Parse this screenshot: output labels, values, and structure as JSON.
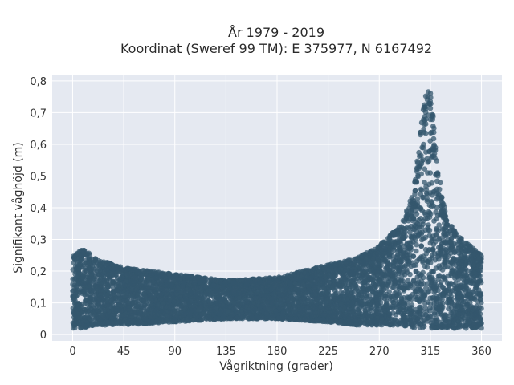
{
  "chart_data": {
    "type": "scatter",
    "title_line1": "År 1979 - 2019",
    "title_line2": "Koordinat (Sweref 99 TM): E 375977, N 6167492",
    "xlabel": "Vågriktning (grader)",
    "ylabel": "Signifikant våghöjd (m)",
    "xlim": [
      -18,
      378
    ],
    "ylim": [
      -0.02,
      0.82
    ],
    "xticks": [
      0,
      45,
      90,
      135,
      180,
      225,
      270,
      315,
      360
    ],
    "xtick_labels": [
      "0",
      "45",
      "90",
      "135",
      "180",
      "225",
      "270",
      "315",
      "360"
    ],
    "yticks": [
      0,
      0.1,
      0.2,
      0.3,
      0.4,
      0.5,
      0.6,
      0.7,
      0.8
    ],
    "ytick_labels": [
      "0",
      "0,1",
      "0,2",
      "0,3",
      "0,4",
      "0,5",
      "0,6",
      "0,7",
      "0,8"
    ],
    "grid": true,
    "marker_color": "#34576e",
    "plot_background": "#e5e9f1",
    "envelope": {
      "x": [
        0,
        10,
        20,
        45,
        90,
        135,
        180,
        225,
        250,
        270,
        290,
        300,
        305,
        310,
        315,
        320,
        325,
        330,
        340,
        350,
        360
      ],
      "ymax": [
        0.25,
        0.27,
        0.24,
        0.21,
        0.19,
        0.17,
        0.18,
        0.22,
        0.24,
        0.28,
        0.35,
        0.45,
        0.6,
        0.75,
        0.79,
        0.58,
        0.45,
        0.36,
        0.31,
        0.28,
        0.25
      ],
      "ymin": [
        0.02,
        0.02,
        0.03,
        0.03,
        0.04,
        0.05,
        0.05,
        0.04,
        0.03,
        0.03,
        0.03,
        0.02,
        0.02,
        0.02,
        0.02,
        0.02,
        0.02,
        0.02,
        0.02,
        0.02,
        0.02
      ]
    }
  }
}
